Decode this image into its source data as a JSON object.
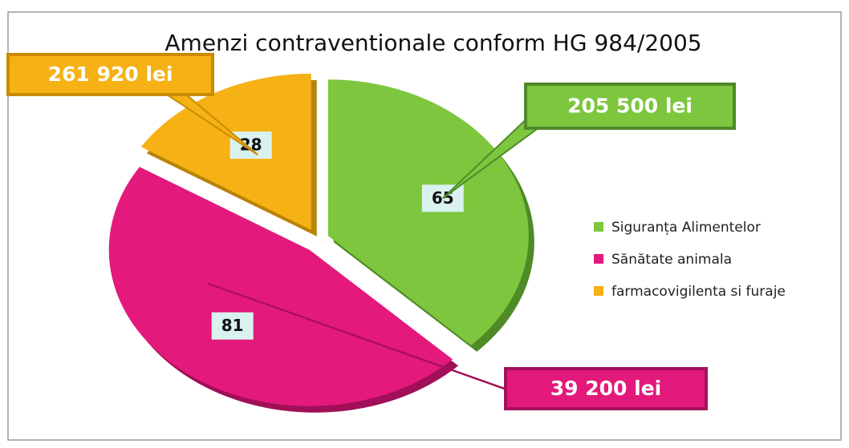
{
  "chart_data": {
    "type": "pie",
    "title": "Amenzi contraventionale conform HG 984/2005",
    "categories": [
      "Siguranța Alimentelor",
      "Sănătate animala",
      "farmacovigilenta si furaje"
    ],
    "values": [
      65,
      81,
      28
    ],
    "colors": [
      "#7dc63e",
      "#e3197b",
      "#f6b114"
    ],
    "callouts": [
      "205 500 lei",
      "39 200 lei",
      "261 920 lei"
    ],
    "legend": "right"
  }
}
